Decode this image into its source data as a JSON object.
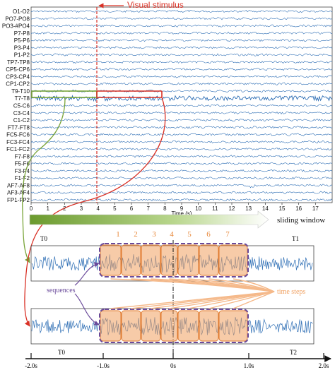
{
  "eeg": {
    "channels": [
      "O1-O2",
      "PO7-PO8",
      "PO3-#PO4",
      "P7-P8",
      "P5-P6",
      "P3-P4",
      "P1-P2",
      "TP7-TP8",
      "CP5-CP6",
      "CP3-CP4",
      "CP1-CP2",
      "T9-T10",
      "T7-T8",
      "C5-C6",
      "C3-C4",
      "C1-C2",
      "FT7-FT8",
      "FC5-FC6",
      "FC3-FC4",
      "FC1-FC2",
      "F7-F8",
      "F5-F6",
      "F3-F4",
      "F1-F2",
      "AF7-AF8",
      "AF3-AF4",
      "FP1-FP2"
    ],
    "highlight_channel": "T7-T8",
    "x_ticks": [
      "0",
      "1",
      "2",
      "3",
      "4",
      "5",
      "6",
      "7",
      "8",
      "9",
      "10",
      "11",
      "12",
      "13",
      "14",
      "15",
      "16",
      "17"
    ],
    "x_label": "Time (s)",
    "stimulus_label": "Visual stimulus",
    "stimulus_time": 4,
    "window_start": 4,
    "window_end": 8
  },
  "sliding_window_label": "sliding window",
  "upper_window": {
    "left_label": "T0",
    "right_label": "T1"
  },
  "step_numbers": [
    "1",
    "2",
    "3",
    "4",
    "5",
    "6",
    "7"
  ],
  "time_steps_label": "time steps",
  "sequences_label": "sequences",
  "bottom_axis": {
    "left_label": "T0",
    "right_label": "T2",
    "ticks": [
      "-2.0s",
      "-1.0s",
      "0s",
      "1.0s",
      "2.0s"
    ]
  },
  "colors": {
    "signal": "#2f6fb5",
    "stimulus": "#d93025",
    "green_arrow": "#7aa53a",
    "step_fill": "#f0a060",
    "step_number": "#e8883a",
    "sequence_border": "#6a4a9a",
    "time_steps_text": "#f0a060"
  }
}
